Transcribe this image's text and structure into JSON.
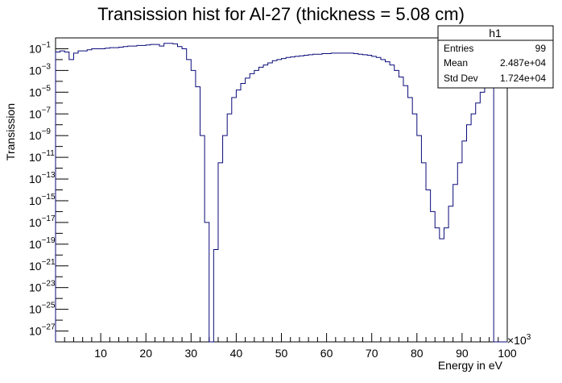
{
  "chart_data": {
    "type": "histogram",
    "title": "Transission hist for Al-27 (thickness = 5.08 cm)",
    "xlabel": "Energy in eV",
    "ylabel": "Transission",
    "x_multiplier_label": "×10",
    "x_multiplier_exponent": "3",
    "xlim": [
      0,
      100
    ],
    "ylim_log10": [
      -28,
      0
    ],
    "scale": "log",
    "color": "#0a0a7a",
    "xticks": [
      {
        "value": 10,
        "label": "10"
      },
      {
        "value": 20,
        "label": "20"
      },
      {
        "value": 30,
        "label": "30"
      },
      {
        "value": 40,
        "label": "40"
      },
      {
        "value": 50,
        "label": "50"
      },
      {
        "value": 60,
        "label": "60"
      },
      {
        "value": 70,
        "label": "70"
      },
      {
        "value": 80,
        "label": "80"
      },
      {
        "value": 90,
        "label": "90"
      },
      {
        "value": 100,
        "label": "100"
      }
    ],
    "yticks": [
      {
        "exp": -1,
        "base": "10",
        "sup": "−1"
      },
      {
        "exp": -3,
        "base": "10",
        "sup": "−3"
      },
      {
        "exp": -5,
        "base": "10",
        "sup": "−5"
      },
      {
        "exp": -7,
        "base": "10",
        "sup": "−7"
      },
      {
        "exp": -9,
        "base": "10",
        "sup": "−9"
      },
      {
        "exp": -11,
        "base": "10",
        "sup": "−11"
      },
      {
        "exp": -13,
        "base": "10",
        "sup": "−13"
      },
      {
        "exp": -15,
        "base": "10",
        "sup": "−15"
      },
      {
        "exp": -17,
        "base": "10",
        "sup": "−17"
      },
      {
        "exp": -19,
        "base": "10",
        "sup": "−19"
      },
      {
        "exp": -21,
        "base": "10",
        "sup": "−21"
      },
      {
        "exp": -23,
        "base": "10",
        "sup": "−23"
      },
      {
        "exp": -25,
        "base": "10",
        "sup": "−25"
      },
      {
        "exp": -27,
        "base": "10",
        "sup": "−27"
      }
    ],
    "bin_width": 1,
    "bins_start": 0,
    "log10_values": [
      -1.3,
      -1.2,
      -1.3,
      -2.0,
      -1.4,
      -1.2,
      -1.2,
      -1.1,
      -1.0,
      -1.0,
      -1.0,
      -0.95,
      -0.9,
      -0.9,
      -0.85,
      -0.8,
      -0.75,
      -0.75,
      -0.7,
      -0.7,
      -0.65,
      -0.6,
      -0.6,
      -0.75,
      -0.5,
      -0.5,
      -0.55,
      -0.8,
      -1.0,
      -2.0,
      -3.0,
      -4.5,
      -9.0,
      -17.0,
      -28.0,
      -19.5,
      -11.5,
      -9.0,
      -7.0,
      -5.5,
      -4.8,
      -4.2,
      -3.7,
      -3.3,
      -3.0,
      -2.7,
      -2.5,
      -2.3,
      -2.1,
      -2.0,
      -1.9,
      -1.8,
      -1.75,
      -1.7,
      -1.65,
      -1.6,
      -1.55,
      -1.5,
      -1.5,
      -1.45,
      -1.45,
      -1.4,
      -1.4,
      -1.4,
      -1.4,
      -1.4,
      -1.45,
      -1.5,
      -1.55,
      -1.6,
      -1.7,
      -1.8,
      -2.0,
      -2.2,
      -2.5,
      -3.0,
      -3.6,
      -4.4,
      -5.5,
      -7.0,
      -9.0,
      -11.5,
      -14.0,
      -16.0,
      -17.5,
      -18.5,
      -17.5,
      -15.5,
      -13.5,
      -11.5,
      -9.5,
      -8.0,
      -7.0,
      -6.0,
      -5.0,
      -4.2,
      -4.0,
      -28.0,
      -28.0,
      -28.0
    ],
    "stats": {
      "name": "h1",
      "rows": [
        {
          "label": "Entries",
          "value": "99"
        },
        {
          "label": "Mean",
          "value": "2.487e+04"
        },
        {
          "label": "Std Dev",
          "value": "1.724e+04"
        }
      ]
    }
  }
}
